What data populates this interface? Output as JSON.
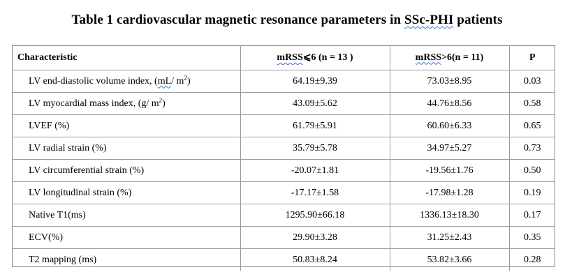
{
  "title": {
    "prefix": "Table 1 cardiovascular magnetic resonance parameters in ",
    "squiggly": "SSc-PHI",
    "suffix": " patients"
  },
  "table": {
    "headers": [
      {
        "squiggly": "",
        "text": "Characteristic"
      },
      {
        "squiggly": "mRSS",
        "text": "⩽6 (n = 13 )"
      },
      {
        "squiggly": "mRSS",
        "text": ">6(n = 11)"
      },
      {
        "squiggly": "",
        "text": "P"
      }
    ],
    "rows": [
      {
        "name": "LV end-diastolic volume index, (mL/ m²)",
        "col2": "64.19±9.39",
        "col3": "73.03±8.95",
        "p": "0.03"
      },
      {
        "name": "LV myocardial mass index, (g/ m²)",
        "col2": "43.09±5.62",
        "col3": "44.76±8.56",
        "p": "0.58"
      },
      {
        "name": "LVEF (%)",
        "col2": "61.79±5.91",
        "col3": "60.60±6.33",
        "p": "0.65"
      },
      {
        "name": "LV radial strain (%)",
        "col2": "35.79±5.78",
        "col3": "34.97±5.27",
        "p": "0.73"
      },
      {
        "name": "LV circumferential strain (%)",
        "col2": "-20.07±1.81",
        "col3": "-19.56±1.76",
        "p": "0.50"
      },
      {
        "name": "LV longitudinal strain (%)",
        "col2": "-17.17±1.58",
        "col3": "-17.98±1.28",
        "p": "0.19"
      },
      {
        "name": "Native T1(ms)",
        "col2": "1295.90±66.18",
        "col3": "1336.13±18.30",
        "p": "0.17"
      },
      {
        "name": "ECV(%)",
        "col2": "29.90±3.28",
        "col3": "31.25±2.43",
        "p": "0.35"
      },
      {
        "name": "T2 mapping (ms)",
        "col2": "50.83±8.24",
        "col3": "53.82±3.66",
        "p": "0.28"
      }
    ]
  }
}
